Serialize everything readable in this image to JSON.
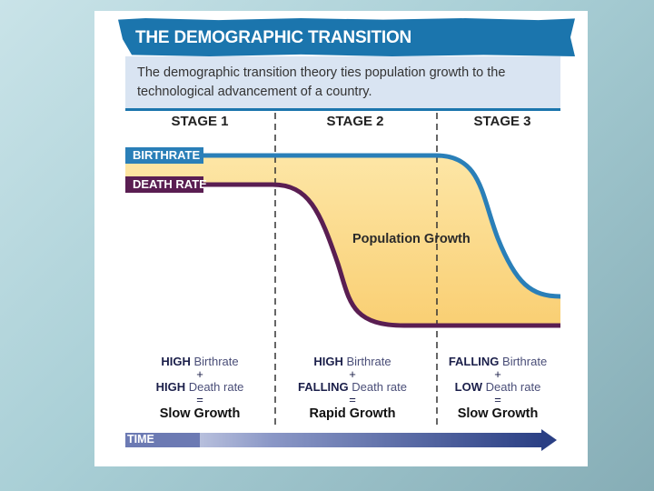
{
  "title": "THE DEMOGRAPHIC TRANSITION",
  "intro": "The demographic transition theory ties population growth to the technological advancement of a country.",
  "stages": [
    "STAGE 1",
    "STAGE 2",
    "STAGE 3"
  ],
  "line_labels": {
    "birthrate": "BIRTHRATE",
    "death_rate": "DEATH RATE"
  },
  "region_label": "Population Growth",
  "axis_label": "TIME",
  "stage_summaries": [
    {
      "birth_level": "HIGH",
      "birth_word": "Birthrate",
      "plus": "+",
      "death_level": "HIGH",
      "death_word": "Death rate",
      "equals": "=",
      "result": "Slow Growth"
    },
    {
      "birth_level": "HIGH",
      "birth_word": "Birthrate",
      "plus": "+",
      "death_level": "FALLING",
      "death_word": "Death rate",
      "equals": "=",
      "result": "Rapid Growth"
    },
    {
      "birth_level": "FALLING",
      "birth_word": "Birthrate",
      "plus": "+",
      "death_level": "LOW",
      "death_word": "Death rate",
      "equals": "=",
      "result": "Slow Growth"
    }
  ],
  "colors": {
    "banner": "#1b75ad",
    "birthrate": "#2a7fb8",
    "death_rate": "#5a1e52",
    "growth_fill": "#fcd98a",
    "time_arrow": "#2a3f84"
  }
}
